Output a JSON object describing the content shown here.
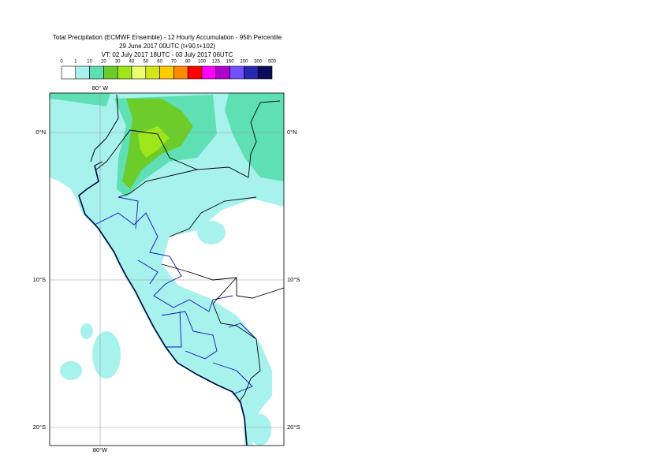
{
  "header": {
    "lines": [
      "Total Precipitation (ECMWF Ensemble) - 12 Hourly Accumulation - 95th Percentile",
      "29 June 2017 00UTC (t+90,t+102)",
      "VT: 02 July 2017 18UTC - 03 July 2017 06UTC"
    ]
  },
  "legend": {
    "labels": [
      "0",
      "1",
      "10",
      "20",
      "30",
      "40",
      "50",
      "60",
      "70",
      "80",
      "100",
      "125",
      "150",
      "200",
      "300",
      "500"
    ],
    "colors": [
      "#ffffff",
      "#a8f2ee",
      "#5fe0b4",
      "#6ccc2a",
      "#9ee61a",
      "#ebff70",
      "#d4e61a",
      "#ffcc00",
      "#ff8a00",
      "#ff0000",
      "#ff00ff",
      "#b000d0",
      "#7050ff",
      "#2828b0",
      "#0c0c58"
    ]
  },
  "map": {
    "top_lon_label": "80° W",
    "bottom_lon_label": "80°W",
    "lat_labels": [
      "0°N",
      "10°S",
      "20°S"
    ]
  }
}
